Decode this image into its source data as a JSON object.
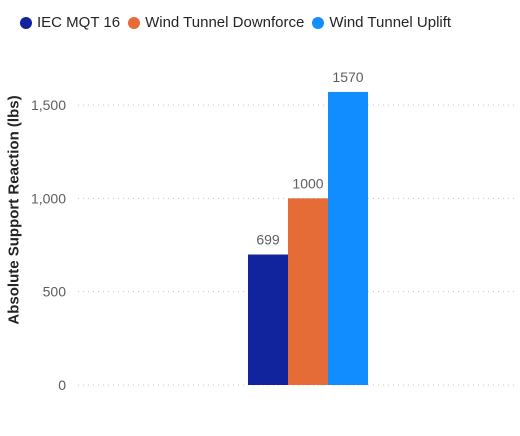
{
  "chart_data": {
    "type": "bar",
    "title": "",
    "xlabel": "",
    "ylabel": "Absolute Support Reaction (lbs)",
    "ylim": [
      0,
      1800
    ],
    "yticks": [
      0,
      500,
      1000,
      1500
    ],
    "ytick_labels": [
      "0",
      "500",
      "1,000",
      "1,500"
    ],
    "grid": true,
    "legend_position": "top-left",
    "categories": [
      ""
    ],
    "series": [
      {
        "name": "IEC MQT 16",
        "color": "#12239e",
        "values": [
          699
        ],
        "label": "699"
      },
      {
        "name": "Wind Tunnel Downforce",
        "color": "#e66c37",
        "values": [
          1000
        ],
        "label": "1000"
      },
      {
        "name": "Wind Tunnel Uplift",
        "color": "#118dff",
        "values": [
          1570
        ],
        "label": "1570"
      }
    ]
  }
}
